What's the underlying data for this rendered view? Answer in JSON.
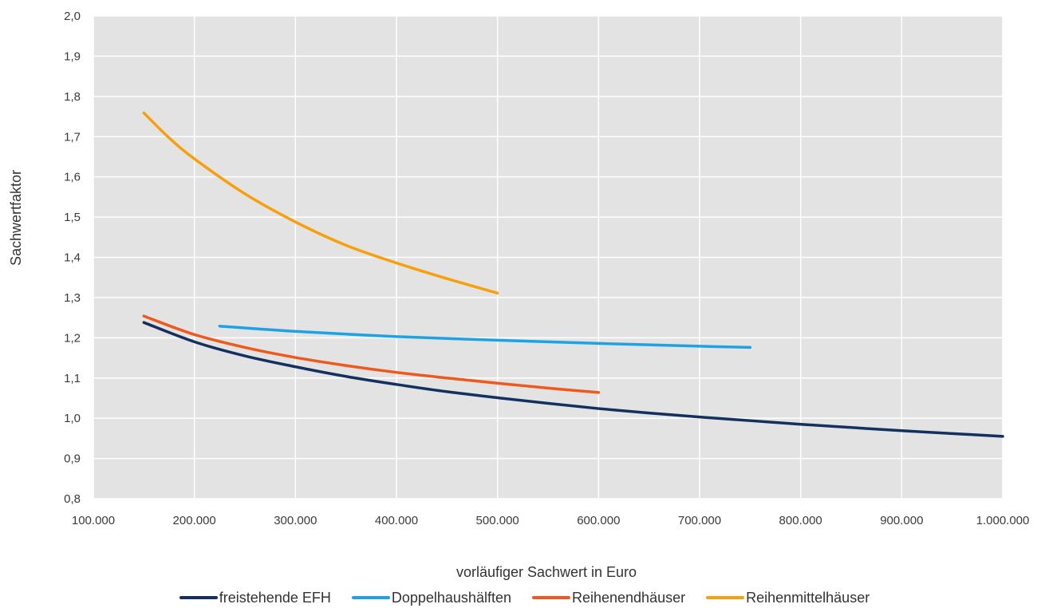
{
  "chart_data": {
    "type": "line",
    "title": "",
    "xlabel": "vorläufiger Sachwert in Euro",
    "ylabel": "Sachwertfaktor",
    "xlim": [
      100000,
      1000000
    ],
    "ylim": [
      0.8,
      2.0
    ],
    "x_ticks": [
      100000,
      200000,
      300000,
      400000,
      500000,
      600000,
      700000,
      800000,
      900000,
      1000000
    ],
    "x_tick_labels": [
      "100.000",
      "200.000",
      "300.000",
      "400.000",
      "500.000",
      "600.000",
      "700.000",
      "800.000",
      "900.000",
      "1.000.000"
    ],
    "y_ticks": [
      0.8,
      0.9,
      1.0,
      1.1,
      1.2,
      1.3,
      1.4,
      1.5,
      1.6,
      1.7,
      1.8,
      1.9,
      2.0
    ],
    "y_tick_labels": [
      "0,8",
      "0,9",
      "1,0",
      "1,1",
      "1,2",
      "1,3",
      "1,4",
      "1,5",
      "1,6",
      "1,7",
      "1,8",
      "1,9",
      "2,0"
    ],
    "grid": true,
    "plot_background": "#e3e3e3",
    "legend_position": "bottom",
    "series": [
      {
        "name": "freistehende EFH",
        "color": "#14305f",
        "x": [
          150000,
          200000,
          250000,
          300000,
          350000,
          400000,
          450000,
          500000,
          550000,
          600000,
          650000,
          700000,
          750000,
          800000,
          850000,
          900000,
          950000,
          1000000
        ],
        "y": [
          1.238,
          1.19,
          1.155,
          1.128,
          1.104,
          1.084,
          1.066,
          1.051,
          1.037,
          1.024,
          1.013,
          1.003,
          0.994,
          0.985,
          0.977,
          0.969,
          0.962,
          0.955
        ]
      },
      {
        "name": "Doppelhaushälften",
        "color": "#1ea2e6",
        "x": [
          225000,
          300000,
          400000,
          500000,
          600000,
          700000,
          750000
        ],
        "y": [
          1.229,
          1.216,
          1.203,
          1.194,
          1.186,
          1.179,
          1.176
        ]
      },
      {
        "name": "Reihenendhäuser",
        "color": "#ee5a1e",
        "x": [
          150000,
          200000,
          250000,
          300000,
          350000,
          400000,
          450000,
          500000,
          550000,
          600000
        ],
        "y": [
          1.254,
          1.208,
          1.176,
          1.151,
          1.131,
          1.114,
          1.1,
          1.087,
          1.075,
          1.064
        ]
      },
      {
        "name": "Reihenmittelhäuser",
        "color": "#f6a00e",
        "x": [
          150000,
          175000,
          200000,
          250000,
          300000,
          350000,
          400000,
          450000,
          500000
        ],
        "y": [
          1.759,
          1.697,
          1.645,
          1.558,
          1.488,
          1.43,
          1.386,
          1.347,
          1.311
        ]
      }
    ]
  }
}
